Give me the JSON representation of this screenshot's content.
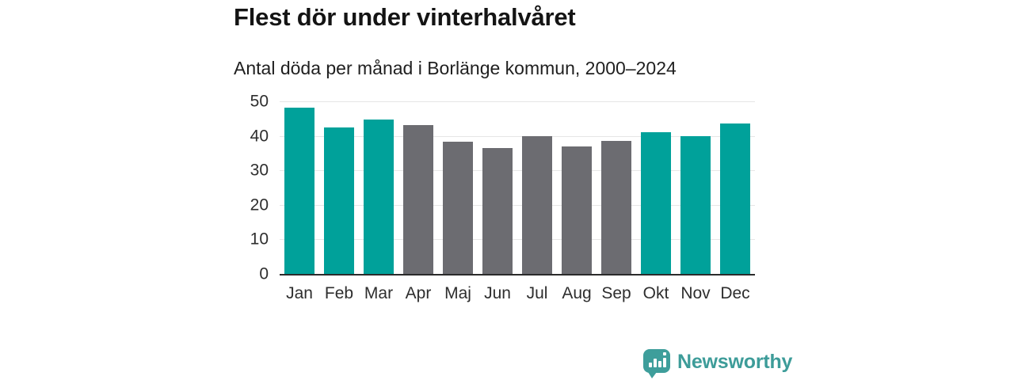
{
  "chart_data": {
    "type": "bar",
    "title": "Flest dör under vinterhalvåret",
    "subtitle": "Antal döda per månad i Borlänge kommun, 2000–2024",
    "categories": [
      "Jan",
      "Feb",
      "Mar",
      "Apr",
      "Maj",
      "Jun",
      "Jul",
      "Aug",
      "Sep",
      "Okt",
      "Nov",
      "Dec"
    ],
    "values": [
      48.2,
      42.5,
      44.8,
      43.1,
      38.2,
      36.5,
      39.8,
      36.9,
      38.5,
      41.0,
      39.9,
      43.5
    ],
    "bar_colors": [
      "teal",
      "teal",
      "teal",
      "gray",
      "gray",
      "gray",
      "gray",
      "gray",
      "gray",
      "teal",
      "teal",
      "teal"
    ],
    "colors": {
      "teal": "#00a19a",
      "gray": "#6c6c71"
    },
    "xlabel": "",
    "ylabel": "",
    "ylim": [
      0,
      50
    ],
    "yticks": [
      0,
      10,
      20,
      30,
      40,
      50
    ],
    "grid": true,
    "legend": false
  },
  "branding": {
    "logo_text": "Newsworthy",
    "logo_color": "#3d9c99"
  }
}
